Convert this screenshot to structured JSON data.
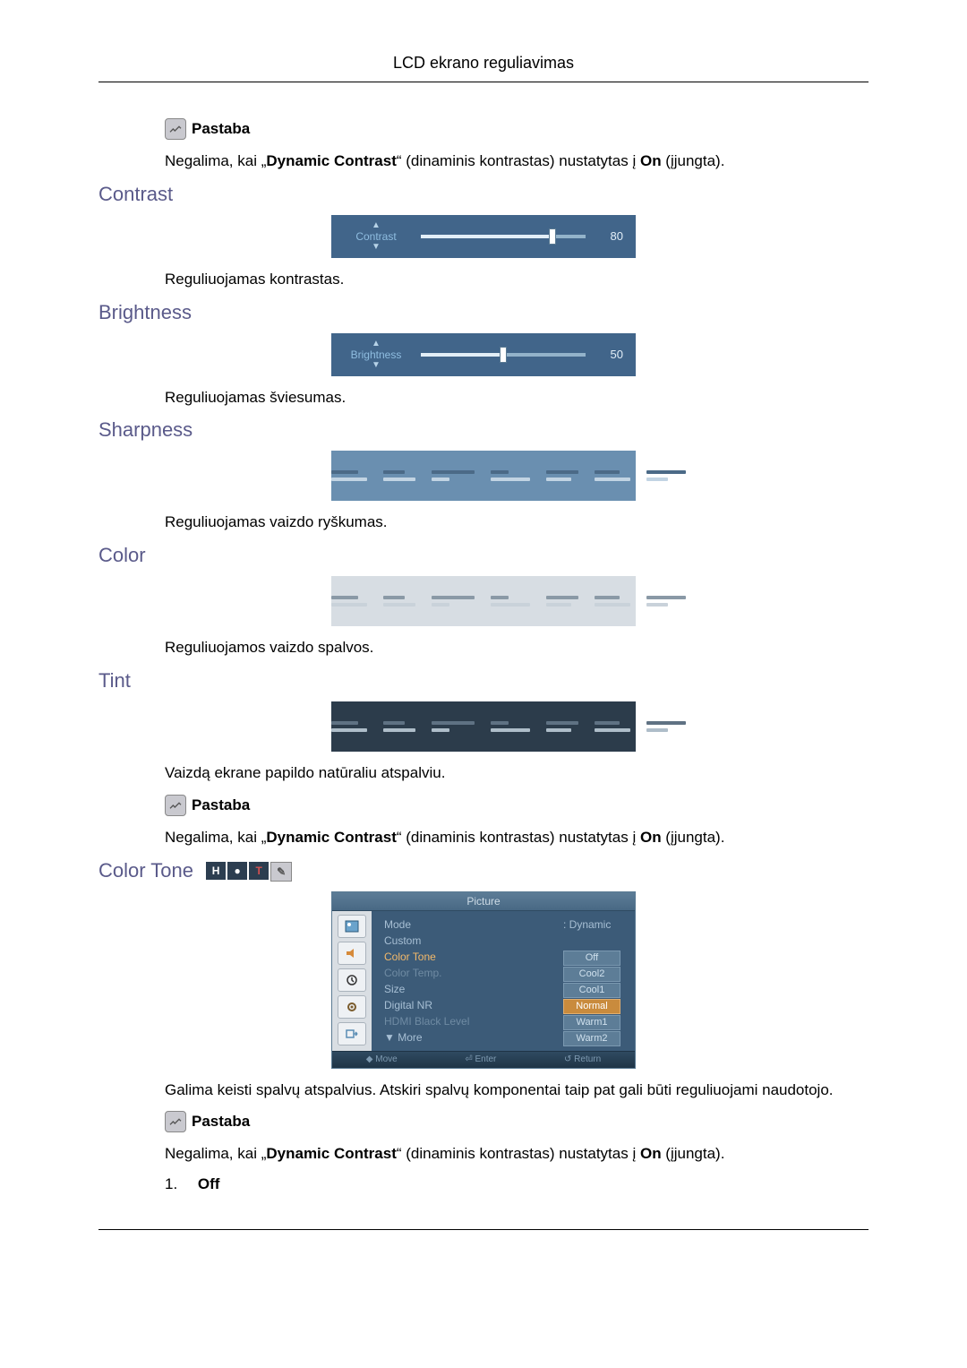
{
  "header": {
    "title": "LCD ekrano reguliavimas"
  },
  "note_label": "Pastaba",
  "dynamic_sentence_pre": "Negalima, kai „",
  "dynamic_sentence_bold": "Dynamic Contrast",
  "dynamic_sentence_mid": "“ (dinaminis kontrastas) nustatytas į ",
  "dynamic_sentence_on": "On",
  "dynamic_sentence_post": " (įjungta).",
  "sections": {
    "contrast": {
      "heading": "Contrast",
      "osd": {
        "label": "Contrast",
        "value": 80,
        "fill_pct": 80,
        "bg": "#41658a",
        "track": "#93b3ca",
        "fill": "#e2eef7"
      },
      "desc": "Reguliuojamas kontrastas."
    },
    "brightness": {
      "heading": "Brightness",
      "osd": {
        "label": "Brightness",
        "value": 50,
        "fill_pct": 50,
        "bg": "#41658a",
        "track": "#93b3ca",
        "fill": "#e2eef7"
      },
      "desc": "Reguliuojamas šviesumas."
    },
    "sharpness": {
      "heading": "Sharpness",
      "graphic": {
        "bg": "#6a8fb0",
        "bar_color_a": "#4b6a87",
        "bar_color_b": "#c2d4e3"
      },
      "desc": "Reguliuojamas vaizdo ryškumas."
    },
    "color": {
      "heading": "Color",
      "graphic": {
        "bg": "#d7dde3",
        "bar_color_a": "#8a99a6",
        "bar_color_b": "#c9d2da"
      },
      "desc": "Reguliuojamos vaizdo spalvos."
    },
    "tint": {
      "heading": "Tint",
      "graphic": {
        "bg": "#2c3c4b",
        "bar_color_a": "#5f7283",
        "bar_color_b": "#aebdc9"
      },
      "desc": "Vaizdą ekrane papildo natūraliu atspalviu."
    },
    "colortone": {
      "heading": "Color Tone",
      "mini_icons": [
        "H",
        "●",
        "T",
        "✎"
      ],
      "menu": {
        "title": "Picture",
        "rows": [
          {
            "k": "Mode",
            "v": ": Dynamic",
            "type": "plain"
          },
          {
            "k": "Custom",
            "v": "",
            "type": "plain"
          },
          {
            "k": "Color Tone",
            "v": "Off",
            "type": "hl_box"
          },
          {
            "k": "Color Temp.",
            "v": "Cool2",
            "type": "dim_box"
          },
          {
            "k": "Size",
            "v": "Cool1",
            "type": "box"
          },
          {
            "k": "Digital NR",
            "v": "Normal",
            "type": "sel_box"
          },
          {
            "k": "HDMI Black Level",
            "v": "Warm1",
            "type": "dim_box"
          },
          {
            "k": "▼  More",
            "v": "Warm2",
            "type": "box"
          }
        ],
        "footer": [
          "◆ Move",
          "⏎ Enter",
          "↺ Return"
        ]
      },
      "desc": "Galima keisti spalvų atspalvius. Atskiri spalvų komponentai taip pat gali būti reguliuojami naudotojo."
    }
  },
  "list": {
    "num": "1.",
    "label": "Off"
  }
}
